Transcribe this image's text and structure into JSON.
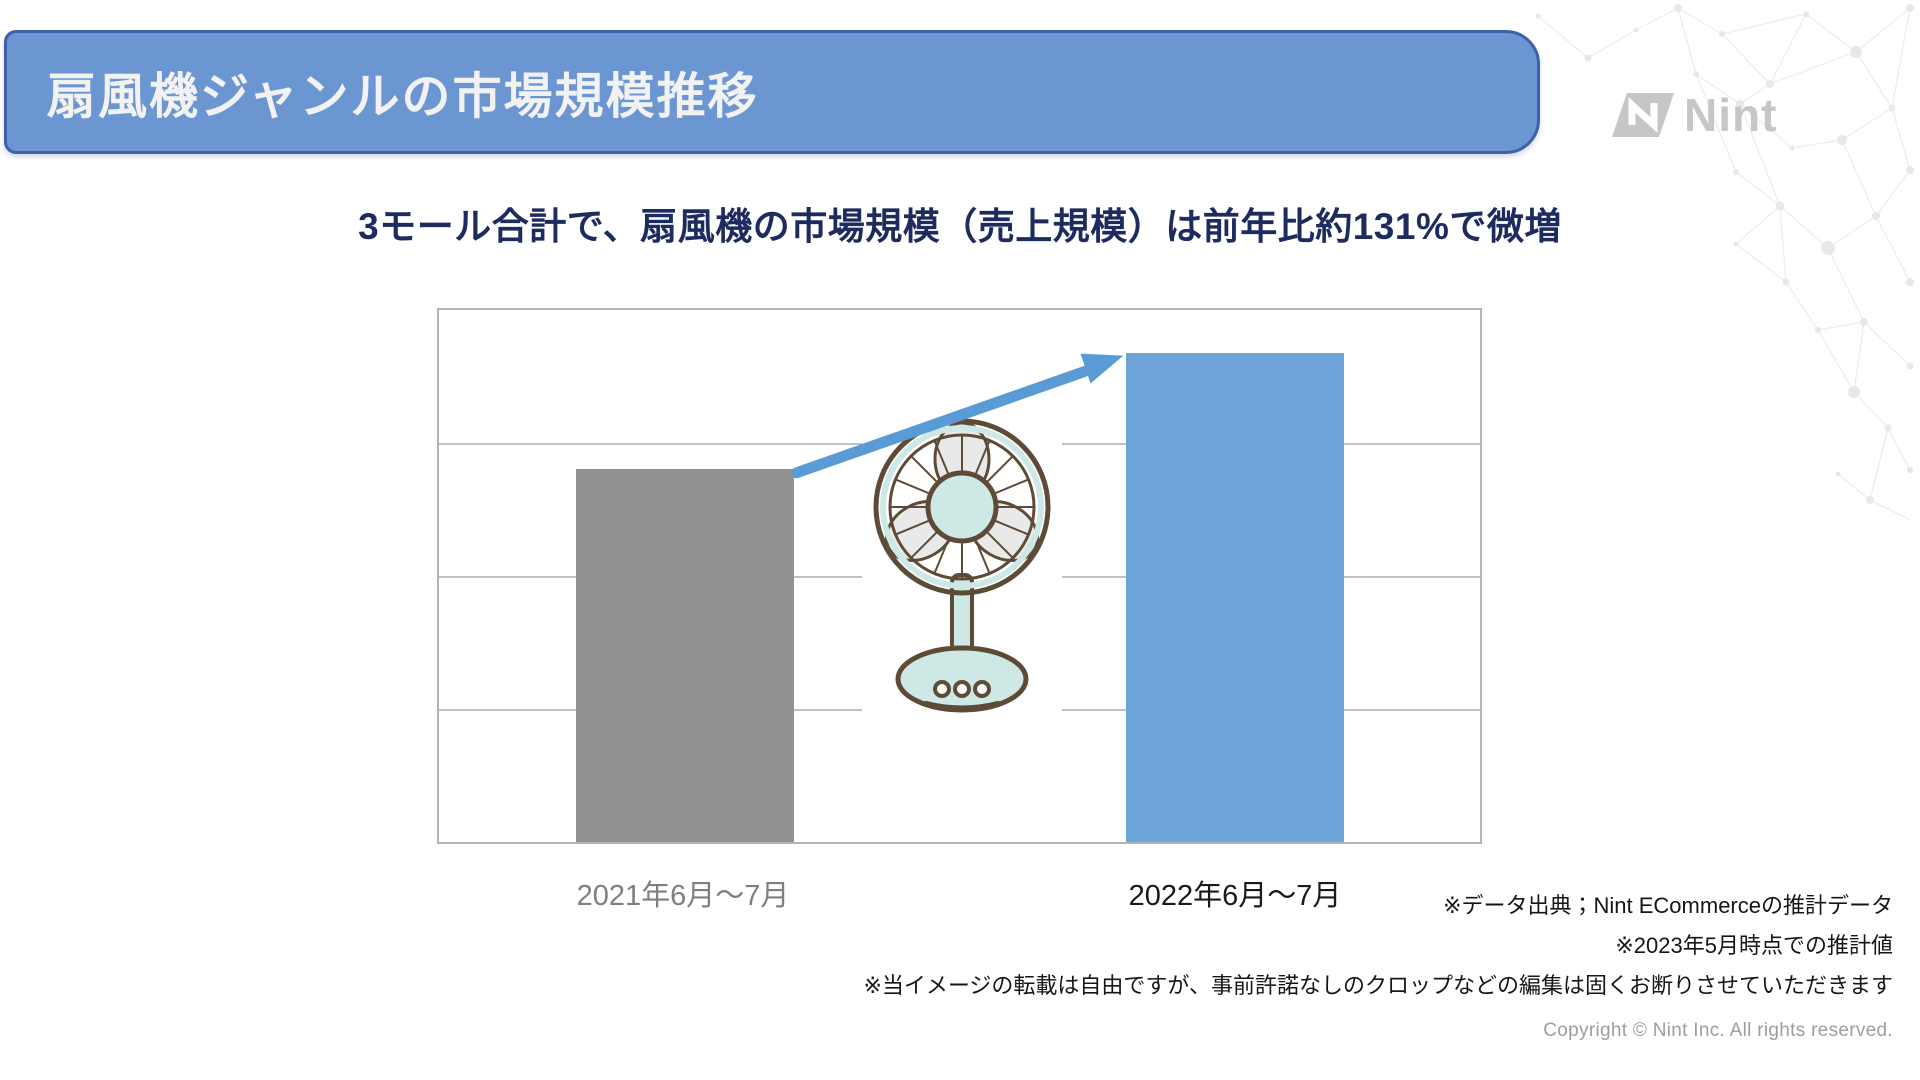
{
  "header": {
    "title": "扇風機ジャンルの市場規模推移",
    "banner_fill": "#6c96d2",
    "banner_border": "#3e61ad",
    "title_color": "#f2f2f2"
  },
  "brand": {
    "logo_text": "Nint",
    "logo_color": "#c6c6c6"
  },
  "subtitle": {
    "text": "3モール合計で、扇風機の市場規模（売上規模）は前年比約131%で微増",
    "color": "#1e2b5e"
  },
  "chart_data": {
    "type": "bar",
    "title": "",
    "xlabel": "",
    "ylabel": "",
    "categories": [
      "2021年6月〜7月",
      "2022年6月〜7月"
    ],
    "values": [
      100,
      131
    ],
    "values_note": "relative index read from chart: 2021=100, 2022≈131 (前年比約131%)",
    "ylim": [
      0,
      142.5
    ],
    "y_tick_labels_visible": false,
    "grid": "horizontal, 4 equal intervals, light gray",
    "legend": "none",
    "bar_colors": [
      "#919191",
      "#6ca3d8"
    ],
    "category_label_colors": [
      "#7f7f7f",
      "#1a1a1a"
    ],
    "annotations": [
      {
        "name": "growth-arrow",
        "from": "top of 2021 bar",
        "to": "top of 2022 bar",
        "color": "#5b9bd5"
      },
      {
        "name": "electric-fan-illustration",
        "position": "between the two bars"
      }
    ]
  },
  "footnotes": [
    "※データ出典；Nint ECommerceの推計データ",
    "※2023年5月時点での推計値",
    "※当イメージの転載は自由ですが、事前許諾なしのクロップなどの編集は固くお断りさせていただきます"
  ],
  "copyright": "Copyright © Nint Inc. All rights reserved.",
  "icons": {
    "logo_mark": "nint-n-mark",
    "arrow": "growth-arrow",
    "illustration": "electric-fan",
    "background": "network-plexus-pattern"
  }
}
